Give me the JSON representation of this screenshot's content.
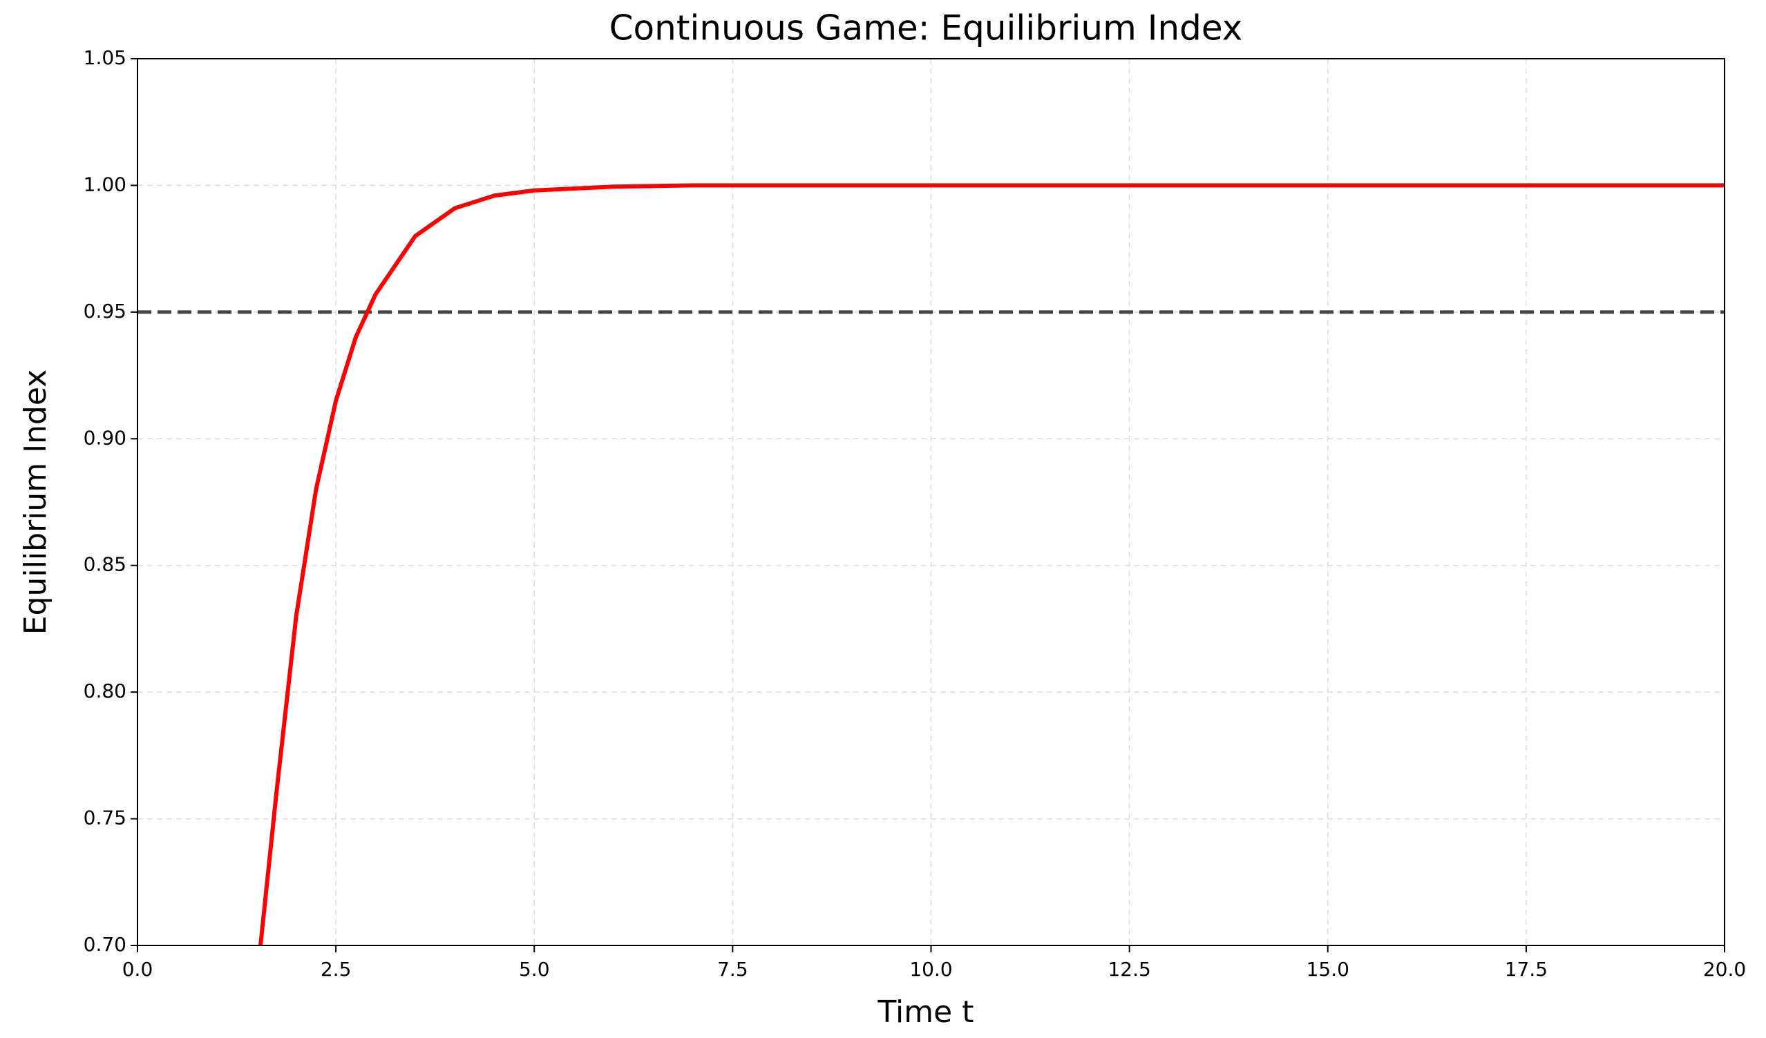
{
  "chart_data": {
    "type": "line",
    "title": "Continuous Game: Equilibrium Index",
    "xlabel": "Time t",
    "ylabel": "Equilibrium Index",
    "x": [
      1.55,
      1.75,
      2.0,
      2.25,
      2.5,
      2.75,
      3.0,
      3.5,
      4.0,
      4.5,
      5.0,
      6.0,
      7.0,
      10.0,
      15.0,
      20.0
    ],
    "series": [
      {
        "color": "#ff0000",
        "values": [
          0.7,
          0.76,
          0.83,
          0.88,
          0.915,
          0.94,
          0.957,
          0.98,
          0.991,
          0.996,
          0.998,
          0.9995,
          1.0,
          1.0,
          1.0,
          1.0
        ]
      }
    ],
    "hlines": [
      {
        "y": 0.95,
        "color": "#444444"
      }
    ],
    "xlim": [
      0,
      20
    ],
    "ylim": [
      0.7,
      1.05
    ],
    "xticks": [
      {
        "value": 0,
        "label": "0.0"
      },
      {
        "value": 2.5,
        "label": "2.5"
      },
      {
        "value": 5,
        "label": "5.0"
      },
      {
        "value": 7.5,
        "label": "7.5"
      },
      {
        "value": 10,
        "label": "10.0"
      },
      {
        "value": 12.5,
        "label": "12.5"
      },
      {
        "value": 15,
        "label": "15.0"
      },
      {
        "value": 17.5,
        "label": "17.5"
      },
      {
        "value": 20,
        "label": "20.0"
      }
    ],
    "yticks": [
      {
        "value": 0.7,
        "label": "0.70"
      },
      {
        "value": 0.75,
        "label": "0.75"
      },
      {
        "value": 0.8,
        "label": "0.80"
      },
      {
        "value": 0.85,
        "label": "0.85"
      },
      {
        "value": 0.9,
        "label": "0.90"
      },
      {
        "value": 0.95,
        "label": "0.95"
      },
      {
        "value": 1.0,
        "label": "1.00"
      },
      {
        "value": 1.05,
        "label": "1.05"
      }
    ],
    "grid": true
  }
}
